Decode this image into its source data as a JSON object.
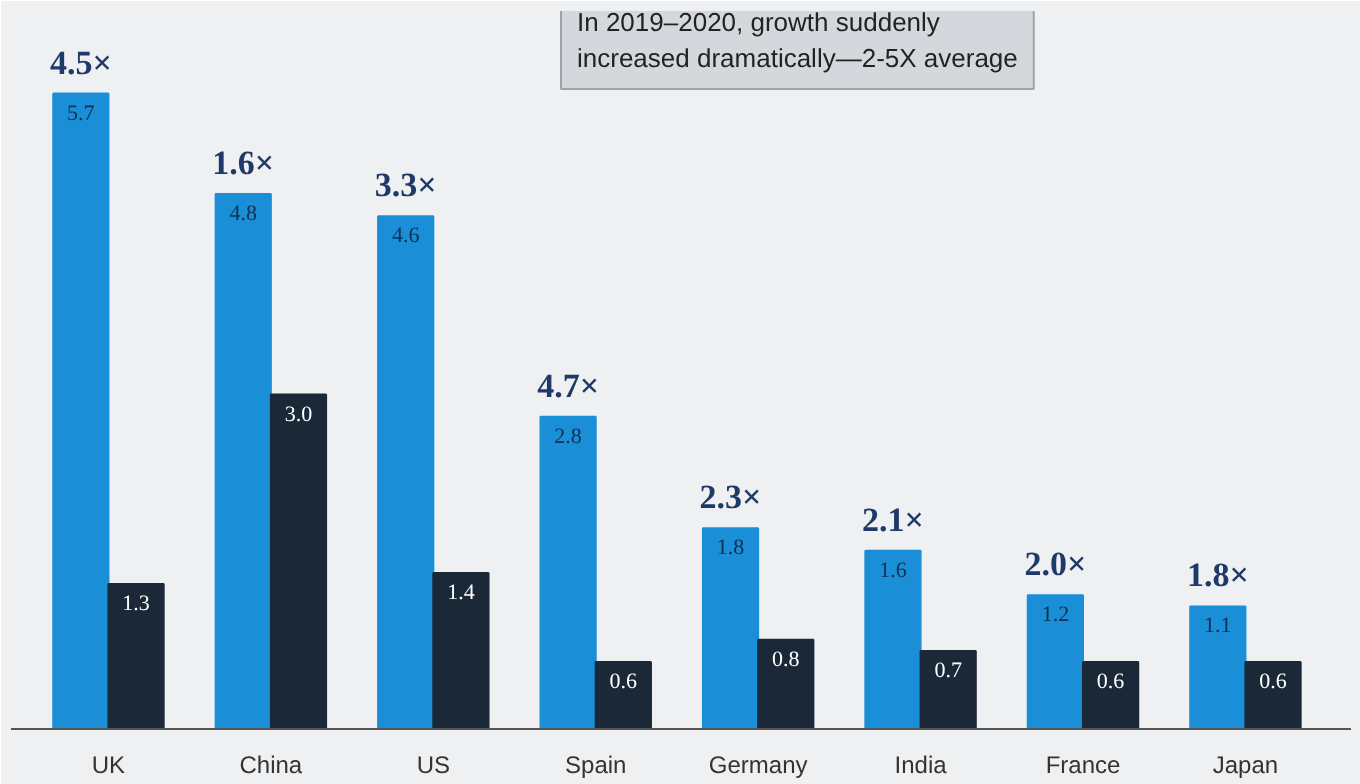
{
  "chart_data": {
    "type": "bar",
    "categories": [
      "UK",
      "China",
      "US",
      "Spain",
      "Germany",
      "India",
      "France",
      "Japan"
    ],
    "series": [
      {
        "color": "#1a8fd8",
        "values": [
          5.7,
          4.8,
          4.6,
          2.8,
          1.8,
          1.6,
          1.2,
          1.1
        ],
        "value_labels": [
          "5.7",
          "4.8",
          "4.6",
          "2.8",
          "1.8",
          "1.6",
          "1.2",
          "1.1"
        ]
      },
      {
        "color": "#1b2838",
        "values": [
          1.3,
          3.0,
          1.4,
          0.6,
          0.8,
          0.7,
          0.6,
          0.6
        ],
        "value_labels": [
          "1.3",
          "3.0",
          "1.4",
          "0.6",
          "0.8",
          "0.7",
          "0.6",
          "0.6"
        ]
      }
    ],
    "grid": false,
    "tick_labels": "x",
    "annotations": [
      {
        "text": "4.5×",
        "x": "UK",
        "y": 5.7
      },
      {
        "text": "1.6×",
        "x": "China",
        "y": 4.8
      },
      {
        "text": "3.3×",
        "x": "US",
        "y": 4.6
      },
      {
        "text": "4.7×",
        "x": "Spain",
        "y": 2.8
      },
      {
        "text": "2.3×",
        "x": "Germany",
        "y": 1.8
      },
      {
        "text": "2.1×",
        "x": "India",
        "y": 1.6
      },
      {
        "text": "2.0×",
        "x": "France",
        "y": 1.2
      },
      {
        "text": "1.8×",
        "x": "Japan",
        "y": 1.1
      },
      "In 2019–2020, growth suddenly\nincreased dramatically—2-5X average"
    ]
  }
}
